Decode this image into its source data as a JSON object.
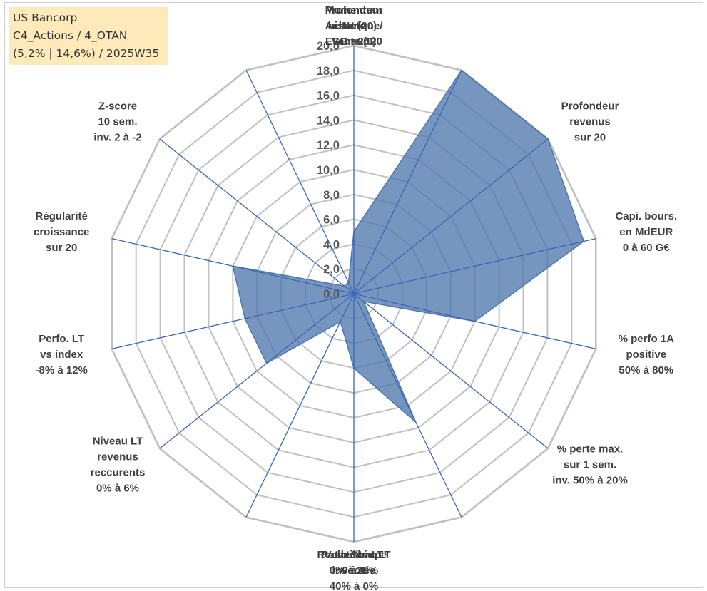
{
  "info": {
    "line1": "US Bancorp",
    "line2": "C4_Actions / 4_OTAN",
    "line3": "(5,2% | 14,6%) / 2025W35"
  },
  "chart_data": {
    "type": "radar",
    "title": "",
    "rmin": 0,
    "rmax": 20,
    "tick_step": 2,
    "ticks": [
      "0,0",
      "2,0",
      "4,0",
      "6,0",
      "8,0",
      "10,0",
      "12,0",
      "14,0",
      "16,0",
      "18,0",
      "20,0"
    ],
    "grid_color": "#c0c0c0",
    "spoke_color": "#3a66b8",
    "fill_color": "#4f78ad",
    "axes": [
      {
        "label": [
          "Note",
          "ESG sur 20"
        ],
        "value": 5
      },
      {
        "label": [
          "Profondeur",
          "historique",
          "sur 20"
        ],
        "value": 20
      },
      {
        "label": [
          "Profondeur",
          "revenus",
          "sur 20"
        ],
        "value": 20
      },
      {
        "label": [
          "Capi. bours.",
          "en MdEUR",
          "0 à 60 G€"
        ],
        "value": 19
      },
      {
        "label": [
          "% perfo 1A",
          "positive",
          "50% à 80%"
        ],
        "value": 10
      },
      {
        "label": [
          "% perte max.",
          "sur 1 sem.",
          "inv. 50% à 20%"
        ],
        "value": 1
      },
      {
        "label": [
          "Volatilité LT",
          "inversée",
          "40% à 0%"
        ],
        "value": 11.5
      },
      {
        "label": [
          "Ratio Sharpe",
          "0 à 1"
        ],
        "value": 6
      },
      {
        "label": [
          "Rendement LT",
          "0% à 20%"
        ],
        "value": 2.5
      },
      {
        "label": [
          "Niveau LT",
          "revenus",
          "reccurents",
          "0% à 6%"
        ],
        "value": 9
      },
      {
        "label": [
          "Perfo. LT",
          "vs index",
          "-8% à 12%"
        ],
        "value": 9
      },
      {
        "label": [
          "Régularité",
          "croissance",
          "sur 20"
        ],
        "value": 10
      },
      {
        "label": [
          "Z-score",
          "10 sem.",
          "inv. 2 à -2"
        ],
        "value": 1
      },
      {
        "label": [
          "Momentum",
          "Achat (20) /",
          "Vente (0)"
        ],
        "value": 1
      }
    ]
  }
}
